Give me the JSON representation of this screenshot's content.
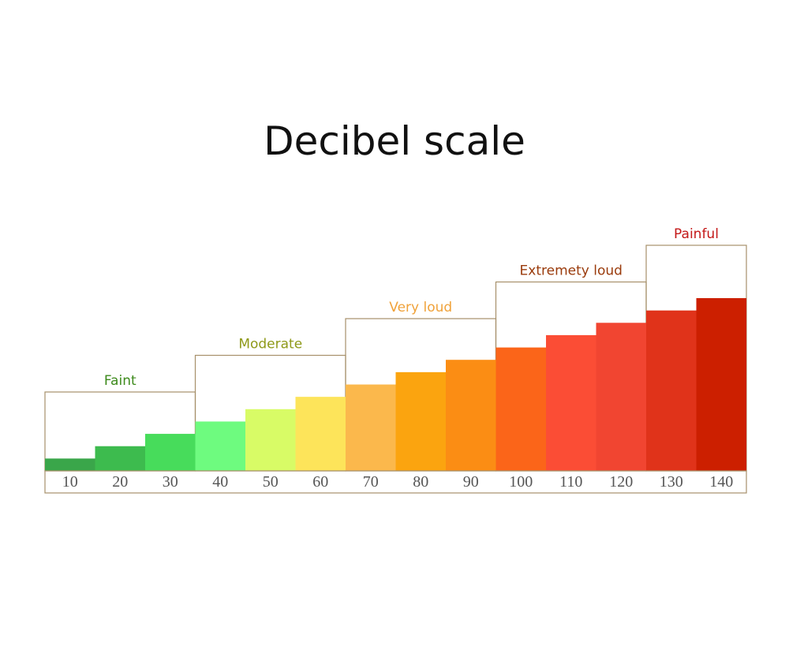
{
  "chart_data": {
    "type": "bar",
    "title": "Decibel scale",
    "categories": [
      "10",
      "20",
      "30",
      "40",
      "50",
      "60",
      "70",
      "80",
      "90",
      "100",
      "110",
      "120",
      "130",
      "140"
    ],
    "values": [
      10,
      20,
      30,
      40,
      50,
      60,
      70,
      80,
      90,
      100,
      110,
      120,
      130,
      140
    ],
    "bar_colors": [
      "#3aa64a",
      "#3dbb4e",
      "#47dc5b",
      "#6efb7f",
      "#d8fb66",
      "#fde45a",
      "#fbb84c",
      "#fba40f",
      "#fb8d14",
      "#fb6519",
      "#fb4d35",
      "#f14531",
      "#e0331a",
      "#cc1f00"
    ],
    "bands": [
      {
        "label": "Faint",
        "from": "10",
        "to": "30",
        "color": "#3d8a1c"
      },
      {
        "label": "Moderate",
        "from": "40",
        "to": "60",
        "color": "#8f9a1a"
      },
      {
        "label": "Very loud",
        "from": "70",
        "to": "90",
        "color": "#f0a23a"
      },
      {
        "label": "Extremety loud",
        "from": "100",
        "to": "120",
        "color": "#9a3b0c"
      },
      {
        "label": "Painful",
        "from": "130",
        "to": "140",
        "color": "#c41818"
      }
    ],
    "frame_color": "#a7906a",
    "xlabel": "",
    "ylabel": ""
  }
}
